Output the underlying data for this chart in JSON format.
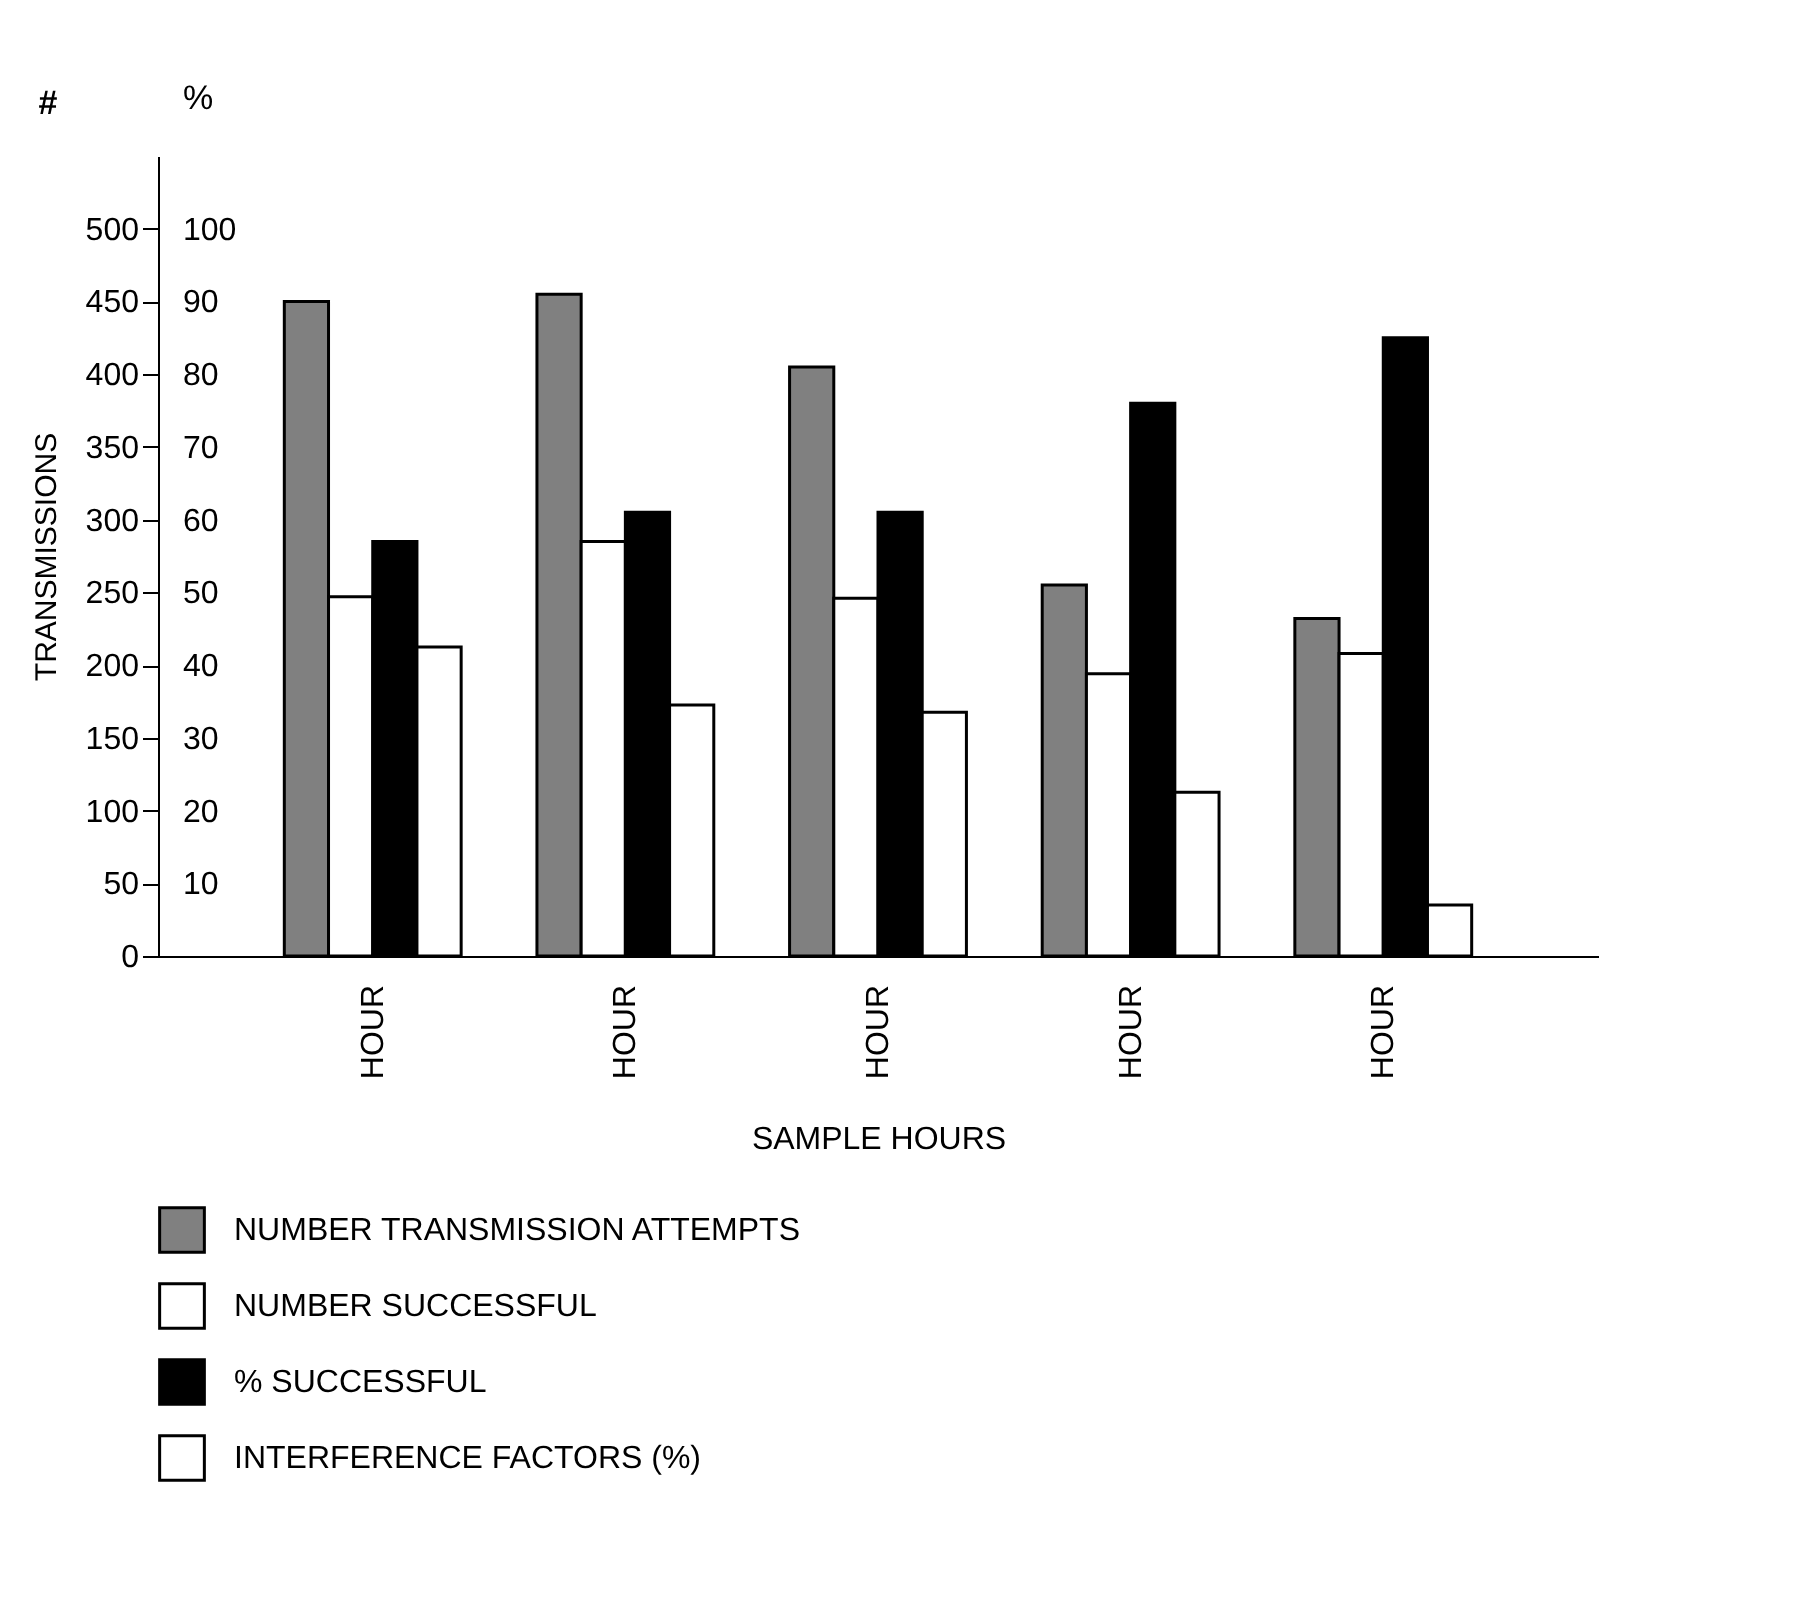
{
  "chart_data": {
    "type": "bar",
    "xlabel": "SAMPLE HOURS",
    "ylabel": "TRANSMISSIONS",
    "y2label": "%",
    "annotations": [
      "#"
    ],
    "categories": [
      "HOUR",
      "HOUR",
      "HOUR",
      "HOUR",
      "HOUR"
    ],
    "series": [
      {
        "name": "NUMBER TRANSMISSION ATTEMPTS",
        "color": "#808080",
        "values": [
          450,
          455,
          405,
          255,
          232
        ]
      },
      {
        "name": "NUMBER SUCCESSFUL",
        "color": "#ffffff",
        "values": [
          247,
          285,
          246,
          194,
          208
        ]
      },
      {
        "name": "% SUCCESSFUL",
        "color": "#000000",
        "axis": "y2",
        "values": [
          57,
          61,
          61,
          76,
          85
        ]
      },
      {
        "name": "INTERFERENCE FACTORS (%)",
        "color": "#ffffff",
        "axis": "y2",
        "values": [
          42.5,
          34.5,
          33.5,
          22.5,
          7
        ]
      }
    ],
    "ylim": [
      0,
      550
    ],
    "yticks": [
      0,
      50,
      100,
      150,
      200,
      250,
      300,
      350,
      400,
      450,
      500
    ],
    "y2lim": [
      0,
      110
    ],
    "y2ticks": [
      10,
      20,
      30,
      40,
      50,
      60,
      70,
      80,
      90,
      100
    ],
    "grid": false,
    "legend": "bottom"
  }
}
